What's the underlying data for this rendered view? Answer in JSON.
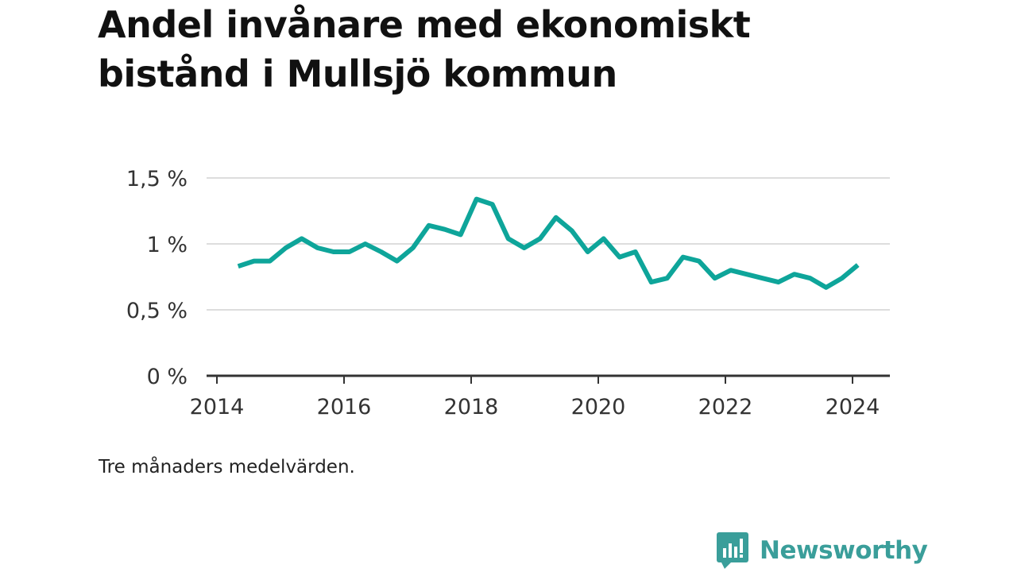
{
  "title": "Andel invånare med ekonomiskt bistånd i Mullsjö kommun",
  "note": "Tre månaders medelvärden.",
  "brand": {
    "name": "Newsworthy",
    "color": "#3a9e9a"
  },
  "colors": {
    "line": "#0ea59a",
    "grid": "#dddddd",
    "axis": "#333333"
  },
  "chart_data": {
    "type": "line",
    "title": "Andel invånare med ekonomiskt bistånd i Mullsjö kommun",
    "xlabel": "",
    "ylabel": "",
    "x_ticks": [
      "2014",
      "2016",
      "2018",
      "2020",
      "2022",
      "2024"
    ],
    "y_ticks": [
      "0 %",
      "0,5 %",
      "1 %",
      "1,5 %"
    ],
    "ylim": [
      0,
      1.5
    ],
    "grid": true,
    "series": [
      {
        "x": [
          "2014-05",
          "2014-08",
          "2014-11",
          "2015-02",
          "2015-05",
          "2015-08",
          "2015-11",
          "2016-02",
          "2016-05",
          "2016-08",
          "2016-11",
          "2017-02",
          "2017-05",
          "2017-08",
          "2017-11",
          "2018-02",
          "2018-05",
          "2018-08",
          "2018-11",
          "2019-02",
          "2019-05",
          "2019-08",
          "2019-11",
          "2020-02",
          "2020-05",
          "2020-08",
          "2020-11",
          "2021-02",
          "2021-05",
          "2021-08",
          "2021-11",
          "2022-02",
          "2022-05",
          "2022-08",
          "2022-11",
          "2023-02",
          "2023-05",
          "2023-08",
          "2023-11",
          "2024-02"
        ],
        "values": [
          0.83,
          0.87,
          0.87,
          0.97,
          1.04,
          0.97,
          0.94,
          0.94,
          1.0,
          0.94,
          0.87,
          0.97,
          1.14,
          1.11,
          1.07,
          1.34,
          1.3,
          1.04,
          0.97,
          1.04,
          1.2,
          1.1,
          0.94,
          1.04,
          0.9,
          0.94,
          0.71,
          0.74,
          0.9,
          0.87,
          0.74,
          0.8,
          0.77,
          0.74,
          0.71,
          0.77,
          0.74,
          0.67,
          0.74,
          0.84
        ]
      }
    ]
  }
}
